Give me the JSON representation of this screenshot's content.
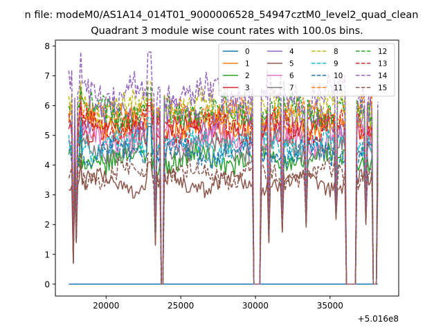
{
  "chart_data": {
    "type": "line",
    "suptitle": "n file: modeM0/AS1A14_014T01_9000006528_54947cztM0_level2_quad_clean",
    "title": "Quadrant 3 module wise count rates with 100.0s bins.",
    "xlabel": "",
    "ylabel": "",
    "x_offset_label": "+5.016e8",
    "xlim": [
      16600,
      39600
    ],
    "ylim": [
      -0.4,
      8.2
    ],
    "xticks": [
      20000,
      25000,
      30000,
      35000
    ],
    "xtick_labels": [
      "20000",
      "25000",
      "30000",
      "35000"
    ],
    "yticks": [
      0,
      1,
      2,
      3,
      4,
      5,
      6,
      7,
      8
    ],
    "ytick_labels": [
      "0",
      "1",
      "2",
      "3",
      "4",
      "5",
      "6",
      "7",
      "8"
    ],
    "x_range": [
      17500,
      38200
    ],
    "bin_width": 100,
    "legend_position": "upper right",
    "gaps": [
      [
        23700,
        23800
      ],
      [
        29900,
        30300
      ],
      [
        36100,
        36700
      ],
      [
        37900,
        38100
      ]
    ],
    "dips": [
      [
        17800,
        0.8
      ],
      [
        18000,
        1.6
      ],
      [
        23300,
        1.5
      ],
      [
        30900,
        1.6
      ],
      [
        31800,
        2.0
      ],
      [
        33400,
        2.2
      ],
      [
        35400,
        2.5
      ],
      [
        37400,
        2.3
      ]
    ],
    "series": [
      {
        "name": "0",
        "color": "#1f77b4",
        "linestyle": "solid",
        "base": 0.0,
        "noise": 0.0,
        "peak": 0.0
      },
      {
        "name": "1",
        "color": "#ff7f0e",
        "linestyle": "solid",
        "base": 5.4,
        "noise": 0.45,
        "peak": 6.2
      },
      {
        "name": "2",
        "color": "#2ca02c",
        "linestyle": "solid",
        "base": 4.2,
        "noise": 0.35,
        "peak": 5.3
      },
      {
        "name": "3",
        "color": "#d62728",
        "linestyle": "solid",
        "base": 5.2,
        "noise": 0.4,
        "peak": 6.0
      },
      {
        "name": "4",
        "color": "#9467bd",
        "linestyle": "solid",
        "base": 5.6,
        "noise": 0.45,
        "peak": 6.4
      },
      {
        "name": "5",
        "color": "#8c564b",
        "linestyle": "solid",
        "base": 3.4,
        "noise": 0.3,
        "peak": 4.1
      },
      {
        "name": "6",
        "color": "#e377c2",
        "linestyle": "solid",
        "base": 4.9,
        "noise": 0.4,
        "peak": 5.8
      },
      {
        "name": "7",
        "color": "#7f7f7f",
        "linestyle": "solid",
        "base": 4.6,
        "noise": 0.35,
        "peak": 5.4
      },
      {
        "name": "8",
        "color": "#bcbd22",
        "linestyle": "dashed",
        "base": 5.9,
        "noise": 0.45,
        "peak": 6.8
      },
      {
        "name": "9",
        "color": "#17becf",
        "linestyle": "dashed",
        "base": 4.7,
        "noise": 0.4,
        "peak": 5.6
      },
      {
        "name": "10",
        "color": "#1f77b4",
        "linestyle": "dashed",
        "base": 4.4,
        "noise": 0.35,
        "peak": 5.3
      },
      {
        "name": "11",
        "color": "#ff7f0e",
        "linestyle": "dashed",
        "base": 5.7,
        "noise": 0.45,
        "peak": 6.6
      },
      {
        "name": "12",
        "color": "#2ca02c",
        "linestyle": "dashed",
        "base": 5.8,
        "noise": 0.45,
        "peak": 6.6
      },
      {
        "name": "13",
        "color": "#d62728",
        "linestyle": "dashed",
        "base": 5.3,
        "noise": 0.4,
        "peak": 6.1
      },
      {
        "name": "14",
        "color": "#9467bd",
        "linestyle": "dashed",
        "base": 6.4,
        "noise": 0.55,
        "peak": 7.8
      },
      {
        "name": "15",
        "color": "#8c564b",
        "linestyle": "dashed",
        "base": 3.7,
        "noise": 0.35,
        "peak": 4.4
      }
    ]
  }
}
